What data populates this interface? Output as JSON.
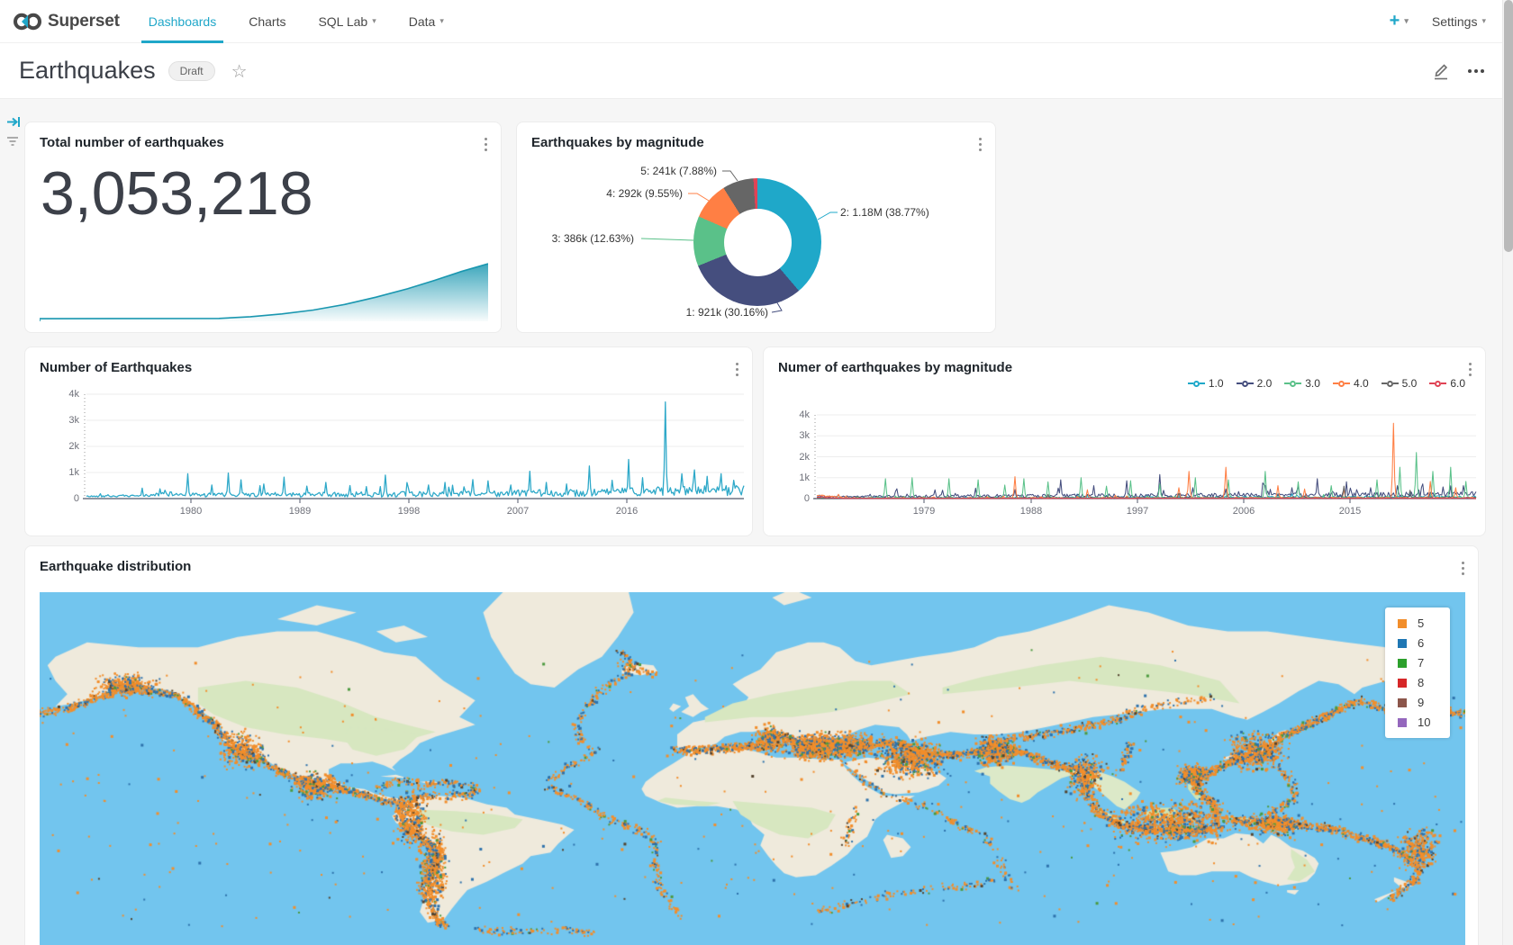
{
  "nav": {
    "brand": "Superset",
    "items": [
      {
        "label": "Dashboards",
        "active": true,
        "caret": false
      },
      {
        "label": "Charts",
        "active": false,
        "caret": false
      },
      {
        "label": "SQL Lab",
        "active": false,
        "caret": true
      },
      {
        "label": "Data",
        "active": false,
        "caret": true
      }
    ],
    "plus_label": "+",
    "settings_label": "Settings"
  },
  "header": {
    "title": "Earthquakes",
    "badge": "Draft"
  },
  "cards": {
    "big_number": {
      "title": "Total number of earthquakes",
      "value": "3,053,218"
    },
    "donut": {
      "title": "Earthquakes by magnitude",
      "labels": {
        "l5": "5: 241k (7.88%)",
        "l4": "4: 292k (9.55%)",
        "l3": "3: 386k (12.63%)",
        "l1": "1: 921k (30.16%)",
        "l2": "2: 1.18M (38.77%)"
      }
    },
    "line1": {
      "title": "Number of Earthquakes"
    },
    "line2": {
      "title": "Numer of earthquakes by magnitude"
    },
    "map": {
      "title": "Earthquake distribution",
      "legend": [
        {
          "label": "5",
          "color": "#F28E2B"
        },
        {
          "label": "6",
          "color": "#1F77B4"
        },
        {
          "label": "7",
          "color": "#2CA02C"
        },
        {
          "label": "8",
          "color": "#D62728"
        },
        {
          "label": "9",
          "color": "#8C564B"
        },
        {
          "label": "10",
          "color": "#9467BD"
        }
      ]
    }
  },
  "chart_data": [
    {
      "id": "total-number-trendline",
      "type": "area",
      "title": "Total number of earthquakes",
      "value": 3053218,
      "value_formatted": "3,053,218",
      "color": "#1A97B0",
      "trend_normalized": [
        [
          0,
          0.015
        ],
        [
          0.4,
          0.02
        ],
        [
          0.47,
          0.05
        ],
        [
          0.54,
          0.1
        ],
        [
          0.61,
          0.17
        ],
        [
          0.68,
          0.27
        ],
        [
          0.75,
          0.4
        ],
        [
          0.82,
          0.55
        ],
        [
          0.88,
          0.7
        ],
        [
          0.94,
          0.86
        ],
        [
          1,
          1
        ]
      ]
    },
    {
      "id": "earthquakes-by-magnitude",
      "type": "pie",
      "title": "Earthquakes by magnitude",
      "hole_ratio": 0.53,
      "slices": [
        {
          "magnitude": "2",
          "value": "1.18M",
          "pct": 38.77,
          "color": "#1FA8C9"
        },
        {
          "magnitude": "1",
          "value": "921k",
          "pct": 30.16,
          "color": "#454E7E"
        },
        {
          "magnitude": "3",
          "value": "386k",
          "pct": 12.63,
          "color": "#5AC189"
        },
        {
          "magnitude": "4",
          "value": "292k",
          "pct": 9.55,
          "color": "#FF7F44"
        },
        {
          "magnitude": "5",
          "value": "241k",
          "pct": 7.88,
          "color": "#666666"
        },
        {
          "magnitude": "unlabeled-sliver",
          "value": "",
          "pct": 1.01,
          "color": "#E04355"
        }
      ]
    },
    {
      "id": "number-of-earthquakes",
      "type": "line",
      "title": "Number of Earthquakes",
      "ylim": [
        0,
        4000
      ],
      "yticks": [
        "4k",
        "3k",
        "2k",
        "1k",
        "0"
      ],
      "xticks": [
        "1980",
        "1989",
        "1998",
        "2007",
        "2016"
      ],
      "color": "#2FA9C9",
      "baseline": [
        [
          0,
          85
        ],
        [
          0.08,
          95
        ],
        [
          0.12,
          170
        ],
        [
          0.18,
          130
        ],
        [
          0.35,
          145
        ],
        [
          0.55,
          165
        ],
        [
          0.75,
          210
        ],
        [
          0.9,
          280
        ],
        [
          1,
          300
        ]
      ],
      "spikes": [
        [
          0.085,
          400
        ],
        [
          0.155,
          950
        ],
        [
          0.19,
          520
        ],
        [
          0.215,
          980
        ],
        [
          0.235,
          720
        ],
        [
          0.27,
          560
        ],
        [
          0.3,
          820
        ],
        [
          0.335,
          480
        ],
        [
          0.365,
          620
        ],
        [
          0.4,
          500
        ],
        [
          0.425,
          460
        ],
        [
          0.455,
          900
        ],
        [
          0.49,
          430
        ],
        [
          0.52,
          520
        ],
        [
          0.545,
          620
        ],
        [
          0.575,
          450
        ],
        [
          0.61,
          680
        ],
        [
          0.645,
          520
        ],
        [
          0.675,
          1050
        ],
        [
          0.7,
          620
        ],
        [
          0.73,
          560
        ],
        [
          0.765,
          1250
        ],
        [
          0.8,
          700
        ],
        [
          0.825,
          1500
        ],
        [
          0.845,
          800
        ],
        [
          0.88,
          3700
        ],
        [
          0.905,
          950
        ],
        [
          0.925,
          1100
        ],
        [
          0.945,
          850
        ],
        [
          0.965,
          950
        ],
        [
          0.985,
          700
        ]
      ]
    },
    {
      "id": "numer-of-earthquakes-by-magnitude",
      "type": "line",
      "title": "Numer of earthquakes by magnitude",
      "ylim": [
        0,
        4000
      ],
      "yticks": [
        "4k",
        "3k",
        "2k",
        "1k",
        "0"
      ],
      "xticks": [
        "1979",
        "1988",
        "1997",
        "2006",
        "2015"
      ],
      "legend": [
        {
          "label": "1.0",
          "color": "#1FA8C9"
        },
        {
          "label": "2.0",
          "color": "#454E7E"
        },
        {
          "label": "3.0",
          "color": "#5AC189"
        },
        {
          "label": "4.0",
          "color": "#FF7F44"
        },
        {
          "label": "5.0",
          "color": "#666666"
        },
        {
          "label": "6.0",
          "color": "#E04355"
        }
      ],
      "series": [
        {
          "name": "1.0",
          "color": "#1FA8C9",
          "baseline": [
            [
              0,
              35
            ],
            [
              1,
              80
            ]
          ],
          "spikes": [
            [
              0.5,
              180
            ],
            [
              0.72,
              220
            ],
            [
              0.9,
              260
            ]
          ]
        },
        {
          "name": "2.0",
          "color": "#454E7E",
          "baseline": [
            [
              0,
              95
            ],
            [
              0.5,
              140
            ],
            [
              1,
              200
            ]
          ],
          "spikes": [
            [
              0.12,
              350
            ],
            [
              0.18,
              420
            ],
            [
              0.24,
              500
            ],
            [
              0.3,
              430
            ],
            [
              0.37,
              900
            ],
            [
              0.42,
              620
            ],
            [
              0.47,
              850
            ],
            [
              0.52,
              1150
            ],
            [
              0.57,
              520
            ],
            [
              0.62,
              460
            ],
            [
              0.68,
              620
            ],
            [
              0.72,
              520
            ],
            [
              0.76,
              950
            ],
            [
              0.8,
              470
            ],
            [
              0.84,
              520
            ],
            [
              0.88,
              620
            ],
            [
              0.92,
              700
            ],
            [
              0.95,
              560
            ],
            [
              0.98,
              620
            ]
          ]
        },
        {
          "name": "3.0",
          "color": "#5AC189",
          "baseline": [
            [
              0,
              28
            ],
            [
              1,
              55
            ]
          ],
          "spikes": [
            [
              0.105,
              950
            ],
            [
              0.145,
              1000
            ],
            [
              0.2,
              950
            ],
            [
              0.245,
              900
            ],
            [
              0.285,
              650
            ],
            [
              0.315,
              950
            ],
            [
              0.35,
              800
            ],
            [
              0.4,
              1000
            ],
            [
              0.44,
              600
            ],
            [
              0.475,
              850
            ],
            [
              0.52,
              700
            ],
            [
              0.575,
              1000
            ],
            [
              0.625,
              900
            ],
            [
              0.68,
              1300
            ],
            [
              0.73,
              800
            ],
            [
              0.78,
              620
            ],
            [
              0.85,
              900
            ],
            [
              0.885,
              1500
            ],
            [
              0.91,
              2200
            ],
            [
              0.935,
              1300
            ],
            [
              0.962,
              1500
            ],
            [
              0.985,
              820
            ]
          ]
        },
        {
          "name": "4.0",
          "color": "#FF7F44",
          "baseline": [
            [
              0,
              150
            ],
            [
              0.05,
              25
            ],
            [
              1,
              42
            ]
          ],
          "spikes": [
            [
              0.01,
              160
            ],
            [
              0.3,
              1050
            ],
            [
              0.41,
              420
            ],
            [
              0.55,
              520
            ],
            [
              0.565,
              1300
            ],
            [
              0.62,
              1500
            ],
            [
              0.7,
              620
            ],
            [
              0.74,
              460
            ],
            [
              0.8,
              420
            ],
            [
              0.875,
              3600
            ],
            [
              0.93,
              820
            ],
            [
              0.97,
              520
            ]
          ]
        },
        {
          "name": "5.0",
          "color": "#666666",
          "baseline": [
            [
              0,
              14
            ],
            [
              1,
              28
            ]
          ],
          "spikes": [
            [
              0.35,
              200
            ],
            [
              0.55,
              250
            ],
            [
              0.8,
              600
            ],
            [
              0.9,
              400
            ]
          ]
        },
        {
          "name": "6.0",
          "color": "#E04355",
          "baseline": [
            [
              0,
              70
            ],
            [
              0.04,
              8
            ],
            [
              1,
              12
            ]
          ],
          "spikes": [
            [
              0.008,
              110
            ],
            [
              0.45,
              50
            ],
            [
              0.87,
              70
            ]
          ]
        }
      ]
    },
    {
      "id": "earthquake-distribution",
      "type": "scatter_map",
      "title": "Earthquake distribution",
      "legend": [
        {
          "magnitude": 5,
          "color": "#F28E2B"
        },
        {
          "magnitude": 6,
          "color": "#1F77B4"
        },
        {
          "magnitude": 7,
          "color": "#2CA02C"
        },
        {
          "magnitude": 8,
          "color": "#D62728"
        },
        {
          "magnitude": 9,
          "color": "#8C564B"
        },
        {
          "magnitude": 10,
          "color": "#9467BD"
        }
      ]
    }
  ]
}
